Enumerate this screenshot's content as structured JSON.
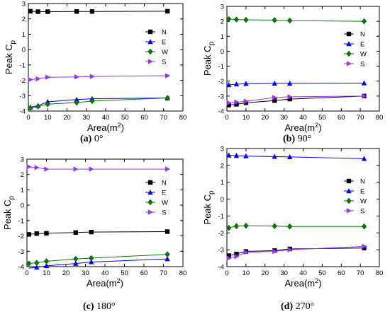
{
  "figure": {
    "panels": [
      {
        "caption_tag": "(a)",
        "caption_angle": "0°"
      },
      {
        "caption_tag": "(b)",
        "caption_angle": "90°"
      },
      {
        "caption_tag": "(c)",
        "caption_angle": "180°"
      },
      {
        "caption_tag": "(d)",
        "caption_angle": "270°"
      }
    ]
  },
  "chart_data": [
    {
      "type": "line",
      "title": "",
      "xlabel": "Area(m2)",
      "ylabel": "Peak Cp",
      "xlim": [
        0,
        80
      ],
      "ylim": [
        -4,
        3
      ],
      "x_ticks": [
        "0",
        "10",
        "20",
        "30",
        "40",
        "50",
        "60",
        "70",
        "80"
      ],
      "y_ticks": [
        "3",
        "2",
        "1",
        "0",
        "-1",
        "-2",
        "-3",
        "-4"
      ],
      "legend_position": "right-middle",
      "x": [
        1,
        5,
        10,
        25,
        33,
        72
      ],
      "series": [
        {
          "name": "N",
          "color": "#000000",
          "marker": "square",
          "values": [
            2.5,
            2.47,
            2.47,
            2.48,
            2.48,
            2.5
          ]
        },
        {
          "name": "E",
          "color": "#0000ff",
          "marker": "triangle-up",
          "values": [
            -3.75,
            -3.65,
            -3.4,
            -3.25,
            -3.2,
            -3.15
          ]
        },
        {
          "name": "W",
          "color": "#008000",
          "marker": "diamond",
          "values": [
            -3.8,
            -3.7,
            -3.55,
            -3.45,
            -3.35,
            -3.15
          ]
        },
        {
          "name": "S",
          "color": "#9b30ff",
          "marker": "triangle-right",
          "values": [
            -1.95,
            -1.9,
            -1.8,
            -1.78,
            -1.75,
            -1.7
          ]
        }
      ]
    },
    {
      "type": "line",
      "title": "",
      "xlabel": "Area(m2)",
      "ylabel": "Peak Cp",
      "xlim": [
        0,
        80
      ],
      "ylim": [
        -4,
        3
      ],
      "x_ticks": [
        "0",
        "10",
        "20",
        "30",
        "40",
        "50",
        "60",
        "70",
        "80"
      ],
      "y_ticks": [
        "3",
        "2",
        "1",
        "0",
        "-1",
        "-2",
        "-3",
        "-4"
      ],
      "legend_position": "right-middle",
      "x": [
        1,
        5,
        10,
        25,
        33,
        72
      ],
      "series": [
        {
          "name": "N",
          "color": "#000000",
          "marker": "square",
          "values": [
            -3.6,
            -3.55,
            -3.45,
            -3.3,
            -3.2,
            -3.0
          ]
        },
        {
          "name": "E",
          "color": "#0000ff",
          "marker": "triangle-up",
          "values": [
            -2.25,
            -2.2,
            -2.17,
            -2.15,
            -2.15,
            -2.13
          ]
        },
        {
          "name": "W",
          "color": "#008000",
          "marker": "diamond",
          "values": [
            2.15,
            2.12,
            2.1,
            2.08,
            2.05,
            2.0
          ]
        },
        {
          "name": "S",
          "color": "#9b30ff",
          "marker": "triangle-right",
          "values": [
            -3.45,
            -3.4,
            -3.35,
            -3.1,
            -3.05,
            -3.0
          ]
        }
      ]
    },
    {
      "type": "line",
      "title": "",
      "xlabel": "Area(m2)",
      "ylabel": "Peak Cp",
      "xlim": [
        0,
        80
      ],
      "ylim": [
        -4,
        3
      ],
      "x_ticks": [
        "0",
        "10",
        "20",
        "30",
        "40",
        "50",
        "60",
        "70",
        "80"
      ],
      "y_ticks": [
        "3",
        "2",
        "1",
        "0",
        "-1",
        "-2",
        "-3",
        "-4"
      ],
      "legend_position": "right-middle",
      "x": [
        1,
        5,
        10,
        25,
        33,
        72
      ],
      "series": [
        {
          "name": "N",
          "color": "#000000",
          "marker": "square",
          "values": [
            -1.9,
            -1.85,
            -1.83,
            -1.78,
            -1.75,
            -1.72
          ]
        },
        {
          "name": "E",
          "color": "#0000ff",
          "marker": "triangle-up",
          "values": [
            -4.1,
            -4.05,
            -3.95,
            -3.8,
            -3.7,
            -3.5
          ]
        },
        {
          "name": "W",
          "color": "#008000",
          "marker": "diamond",
          "values": [
            -3.8,
            -3.75,
            -3.65,
            -3.5,
            -3.45,
            -3.2
          ]
        },
        {
          "name": "S",
          "color": "#9b30ff",
          "marker": "triangle-right",
          "values": [
            2.5,
            2.45,
            2.35,
            2.35,
            2.35,
            2.35
          ]
        }
      ]
    },
    {
      "type": "line",
      "title": "",
      "xlabel": "Area(m2)",
      "ylabel": "Peak Cp",
      "xlim": [
        0,
        80
      ],
      "ylim": [
        -4,
        3
      ],
      "x_ticks": [
        "0",
        "10",
        "20",
        "30",
        "40",
        "50",
        "60",
        "70",
        "80"
      ],
      "y_ticks": [
        "3",
        "2",
        "1",
        "0",
        "-1",
        "-2",
        "-3",
        "-4"
      ],
      "legend_position": "right-middle",
      "x": [
        1,
        5,
        10,
        25,
        33,
        72
      ],
      "series": [
        {
          "name": "N",
          "color": "#000000",
          "marker": "square",
          "values": [
            -3.35,
            -3.25,
            -3.1,
            -3.05,
            -2.95,
            -2.9
          ]
        },
        {
          "name": "E",
          "color": "#0000ff",
          "marker": "triangle-up",
          "values": [
            2.6,
            2.58,
            2.55,
            2.52,
            2.5,
            2.4
          ]
        },
        {
          "name": "W",
          "color": "#008000",
          "marker": "diamond",
          "values": [
            -1.7,
            -1.6,
            -1.58,
            -1.6,
            -1.62,
            -1.62
          ]
        },
        {
          "name": "S",
          "color": "#9b30ff",
          "marker": "triangle-right",
          "values": [
            -3.5,
            -3.4,
            -3.15,
            -3.1,
            -3.0,
            -2.8
          ]
        }
      ]
    }
  ]
}
